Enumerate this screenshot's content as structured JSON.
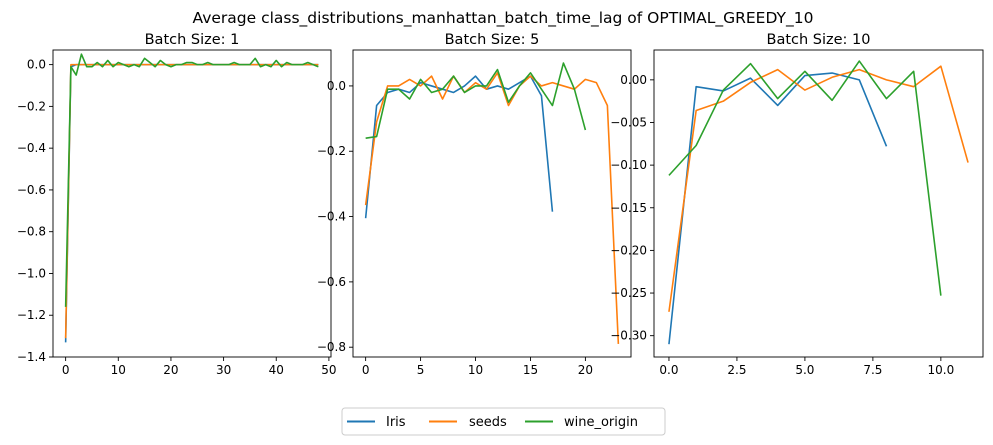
{
  "figure": {
    "suptitle": "Average class_distributions_manhattan_batch_time_lag of OPTIMAL_GREEDY_10"
  },
  "legend": {
    "placement": "bottom-center",
    "entries": [
      {
        "name": "Iris",
        "color": "#1f77b4"
      },
      {
        "name": "seeds",
        "color": "#ff7f0e"
      },
      {
        "name": "wine_origin",
        "color": "#2ca02c"
      }
    ]
  },
  "chart_data": [
    {
      "type": "line",
      "title": "Batch Size: 1",
      "xlabel": "",
      "ylabel": "",
      "xlim": [
        -2.4,
        50.4
      ],
      "ylim": [
        -1.4,
        0.07
      ],
      "xticks": [
        0,
        10,
        20,
        30,
        40,
        50
      ],
      "yticks": [
        -1.4,
        -1.2,
        -1.0,
        -0.8,
        -0.6,
        -0.4,
        -0.2,
        0.0
      ],
      "ytick_labels": [
        "−1.4",
        "−1.2",
        "−1.0",
        "−0.8",
        "−0.6",
        "−0.4",
        "−0.2",
        "0.0"
      ],
      "grid": false,
      "series": [
        {
          "name": "Iris",
          "color": "#1f77b4",
          "x": [
            0,
            1,
            2,
            3,
            4,
            5,
            6,
            7,
            8,
            9,
            10,
            11,
            12,
            13,
            14,
            15,
            16,
            17,
            18,
            19,
            20,
            21,
            22,
            23,
            24,
            25,
            26,
            27,
            28,
            29,
            30,
            31,
            32,
            33,
            34,
            35,
            36,
            37,
            38,
            39,
            40,
            41,
            42,
            43,
            44,
            45,
            46,
            47,
            48
          ],
          "y": [
            -1.33,
            -0.01,
            0.0,
            0.0,
            0.0,
            0.0,
            0.0,
            0.0,
            0.0,
            0.0,
            0.0,
            0.0,
            0.0,
            0.0,
            0.0,
            0.0,
            0.0,
            0.0,
            0.0,
            0.0,
            0.0,
            0.0,
            0.0,
            0.0,
            0.0,
            0.0,
            0.0,
            0.0,
            0.0,
            0.0,
            0.0,
            0.0,
            0.0,
            0.0,
            0.0,
            0.0,
            0.0,
            0.0,
            0.0,
            0.0,
            0.0,
            0.0,
            0.0,
            0.0,
            0.0,
            0.0,
            0.0,
            0.0,
            0.0
          ]
        },
        {
          "name": "seeds",
          "color": "#ff7f0e",
          "x": [
            0,
            1,
            2,
            3,
            4,
            5,
            6,
            7,
            8,
            9,
            10,
            11,
            12,
            13,
            14,
            15,
            16,
            17,
            18,
            19,
            20,
            21,
            22,
            23,
            24,
            25,
            26,
            27,
            28,
            29,
            30,
            31,
            32,
            33,
            34,
            35,
            36,
            37,
            38,
            39,
            40,
            41,
            42,
            43,
            44,
            45,
            46,
            47,
            48
          ],
          "y": [
            -1.31,
            0.0,
            0.0,
            0.0,
            0.0,
            0.0,
            0.0,
            0.0,
            0.0,
            0.0,
            0.0,
            0.0,
            0.0,
            0.0,
            0.0,
            0.0,
            0.0,
            0.0,
            0.0,
            0.0,
            0.0,
            0.0,
            0.0,
            0.0,
            0.0,
            0.0,
            0.0,
            0.0,
            0.0,
            0.0,
            0.0,
            0.0,
            0.0,
            0.0,
            0.0,
            0.0,
            0.0,
            0.0,
            0.0,
            0.0,
            0.0,
            0.0,
            0.0,
            0.0,
            0.0,
            0.0,
            0.0,
            0.0,
            0.0
          ]
        },
        {
          "name": "wine_origin",
          "color": "#2ca02c",
          "x": [
            0,
            1,
            2,
            3,
            4,
            5,
            6,
            7,
            8,
            9,
            10,
            11,
            12,
            13,
            14,
            15,
            16,
            17,
            18,
            19,
            20,
            21,
            22,
            23,
            24,
            25,
            26,
            27,
            28,
            29,
            30,
            31,
            32,
            33,
            34,
            35,
            36,
            37,
            38,
            39,
            40,
            41,
            42,
            43,
            44,
            45,
            46,
            47,
            48
          ],
          "y": [
            -1.16,
            -0.01,
            -0.05,
            0.05,
            -0.01,
            -0.01,
            0.01,
            -0.01,
            0.02,
            -0.01,
            0.01,
            0.0,
            -0.01,
            0.0,
            -0.01,
            0.03,
            0.01,
            -0.01,
            0.02,
            0.0,
            -0.01,
            0.0,
            0.0,
            0.01,
            0.01,
            0.0,
            0.0,
            0.01,
            0.0,
            0.0,
            0.0,
            0.0,
            0.01,
            0.0,
            0.0,
            0.0,
            0.03,
            -0.01,
            0.0,
            -0.01,
            0.02,
            -0.01,
            0.01,
            0.0,
            0.0,
            0.0,
            0.01,
            0.0,
            -0.01
          ]
        }
      ]
    },
    {
      "type": "line",
      "title": "Batch Size: 5",
      "xlabel": "",
      "ylabel": "",
      "xlim": [
        -1.15,
        24.15
      ],
      "ylim": [
        -0.83,
        0.11
      ],
      "xticks": [
        0,
        5,
        10,
        15,
        20
      ],
      "yticks": [
        -0.8,
        -0.6,
        -0.4,
        -0.2,
        0.0
      ],
      "ytick_labels": [
        "−0.8",
        "−0.6",
        "−0.4",
        "−0.2",
        "0.0"
      ],
      "grid": false,
      "series": [
        {
          "name": "Iris",
          "color": "#1f77b4",
          "x": [
            0,
            1,
            2,
            3,
            4,
            5,
            6,
            7,
            8,
            9,
            10,
            11,
            12,
            13,
            14,
            15,
            16,
            17
          ],
          "y": [
            -0.405,
            -0.06,
            -0.02,
            -0.01,
            -0.02,
            0.01,
            0.0,
            -0.01,
            -0.02,
            0.0,
            0.03,
            -0.01,
            0.0,
            -0.01,
            0.01,
            0.03,
            -0.03,
            -0.385
          ]
        },
        {
          "name": "seeds",
          "color": "#ff7f0e",
          "x": [
            0,
            1,
            2,
            3,
            4,
            5,
            6,
            7,
            8,
            9,
            10,
            11,
            12,
            13,
            14,
            15,
            16,
            17,
            18,
            19,
            20,
            21,
            22,
            23
          ],
          "y": [
            -0.365,
            -0.11,
            0.0,
            0.0,
            0.02,
            0.0,
            0.03,
            -0.04,
            0.03,
            -0.02,
            0.01,
            -0.01,
            0.04,
            -0.06,
            0.0,
            0.03,
            0.0,
            0.01,
            0.0,
            -0.01,
            0.02,
            0.01,
            -0.06,
            -0.79
          ]
        },
        {
          "name": "wine_origin",
          "color": "#2ca02c",
          "x": [
            0,
            1,
            2,
            3,
            4,
            5,
            6,
            7,
            8,
            9,
            10,
            11,
            12,
            13,
            14,
            15,
            16,
            17,
            18,
            19,
            20
          ],
          "y": [
            -0.16,
            -0.155,
            -0.01,
            -0.01,
            -0.04,
            0.02,
            -0.02,
            -0.01,
            0.03,
            -0.02,
            0.0,
            0.0,
            0.05,
            -0.05,
            0.0,
            0.04,
            -0.01,
            -0.06,
            0.07,
            -0.01,
            -0.135
          ]
        }
      ]
    },
    {
      "type": "line",
      "title": "Batch Size: 10",
      "xlabel": "",
      "ylabel": "",
      "xlim": [
        -0.55,
        11.55
      ],
      "ylim": [
        -0.325,
        0.035
      ],
      "xticks": [
        0.0,
        2.5,
        5.0,
        7.5,
        10.0
      ],
      "yticks": [
        -0.3,
        -0.25,
        -0.2,
        -0.15,
        -0.1,
        -0.05,
        0.0
      ],
      "ytick_labels": [
        "−0.30",
        "−0.25",
        "−0.20",
        "−0.15",
        "−0.10",
        "−0.05",
        "0.00"
      ],
      "grid": false,
      "series": [
        {
          "name": "Iris",
          "color": "#1f77b4",
          "x": [
            0,
            1,
            2,
            3,
            4,
            5,
            6,
            7,
            8
          ],
          "y": [
            -0.31,
            -0.008,
            -0.013,
            0.002,
            -0.03,
            0.005,
            0.008,
            0.0,
            -0.078
          ]
        },
        {
          "name": "seeds",
          "color": "#ff7f0e",
          "x": [
            0,
            1,
            2,
            3,
            4,
            5,
            6,
            7,
            8,
            9,
            10,
            11
          ],
          "y": [
            -0.272,
            -0.036,
            -0.025,
            -0.003,
            0.012,
            -0.012,
            0.003,
            0.012,
            0.0,
            -0.008,
            0.016,
            -0.097
          ]
        },
        {
          "name": "wine_origin",
          "color": "#2ca02c",
          "x": [
            0,
            1,
            2,
            3,
            4,
            5,
            6,
            7,
            8,
            9,
            10
          ],
          "y": [
            -0.112,
            -0.077,
            -0.012,
            0.019,
            -0.022,
            0.01,
            -0.024,
            0.022,
            -0.022,
            0.01,
            -0.253
          ]
        }
      ]
    }
  ]
}
